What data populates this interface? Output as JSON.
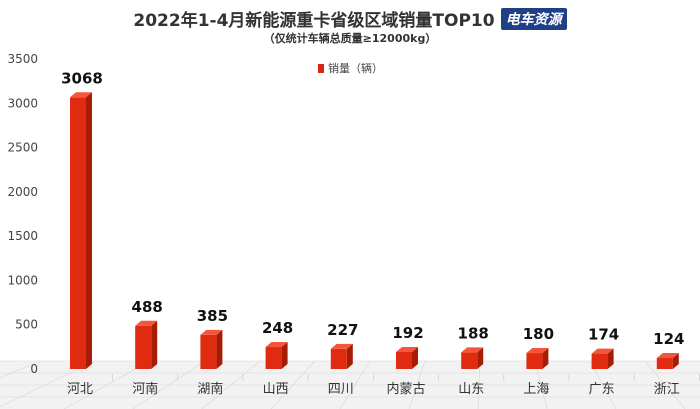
{
  "header": {
    "title": "2022年1-4月新能源重卡省级区域销量TOP10",
    "brand": "电车资源",
    "subtitle": "（仅统计车辆总质量≥12000kg）"
  },
  "colors": {
    "bar_front": "#e02b10",
    "bar_side": "#a81c06",
    "bar_top": "#f4563a",
    "floor": "#f2f2f2",
    "floor_grid": "#d6d6d6"
  },
  "chart_data": {
    "type": "bar",
    "legend": "销量（辆）",
    "legend_position": "top",
    "categories": [
      "河北",
      "河南",
      "湖南",
      "山西",
      "四川",
      "内蒙古",
      "山东",
      "上海",
      "广东",
      "浙江"
    ],
    "series": [
      {
        "name": "销量（辆）",
        "values": [
          3068,
          488,
          385,
          248,
          227,
          192,
          188,
          180,
          174,
          124
        ]
      }
    ],
    "data_labels": [
      "3068",
      "488",
      "385",
      "248",
      "227",
      "192",
      "188",
      "180",
      "174",
      "124"
    ],
    "yticks": [
      "0",
      "500",
      "1000",
      "1500",
      "2000",
      "2500",
      "3000",
      "3500"
    ],
    "ylim": [
      0,
      3500
    ],
    "grid": false
  }
}
